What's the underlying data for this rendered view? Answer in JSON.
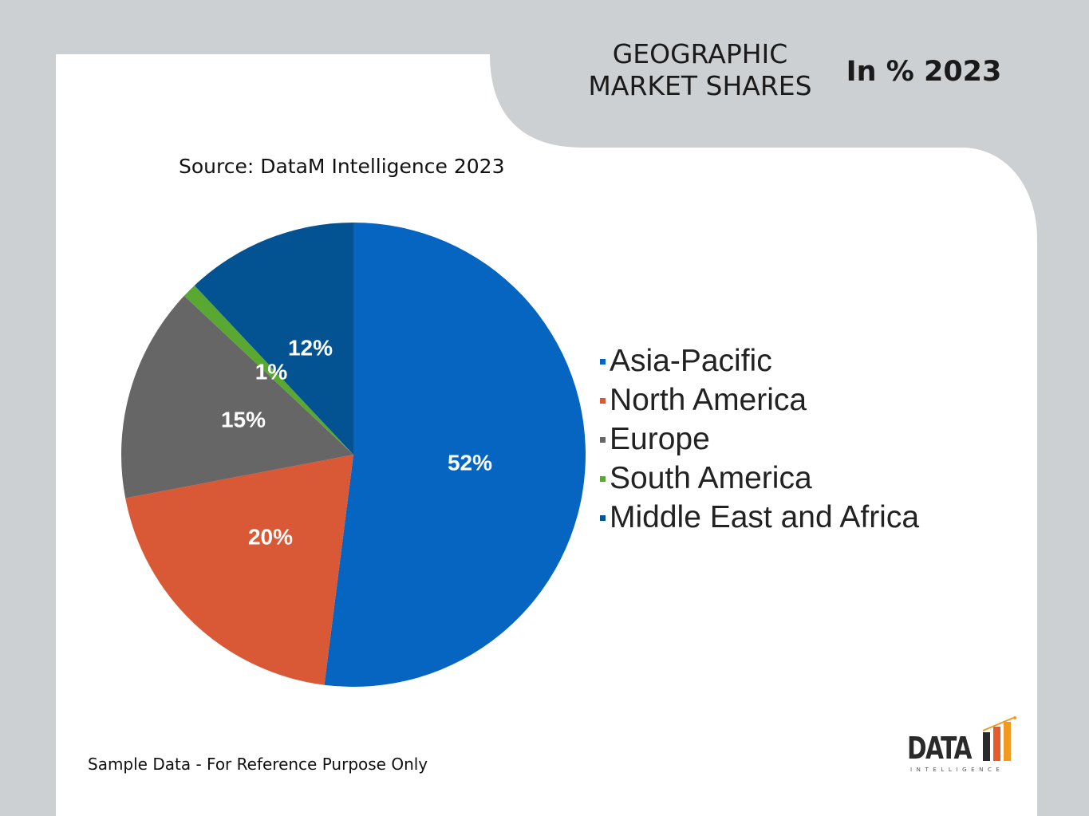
{
  "title": {
    "line1": "GEOGRAPHIC",
    "line2": "MARKET SHARES"
  },
  "unit_label": "In % 2023",
  "source": "Source: DataM Intelligence 2023",
  "footnote": "Sample Data - For Reference Purpose Only",
  "logo": {
    "word": "DATA",
    "subtitle": "INTELLIGENCE"
  },
  "colors": {
    "page_background": "#ccd0d3",
    "card_background": "#ffffff",
    "label_text": "#ffffff"
  },
  "chart_data": {
    "type": "pie",
    "title": "",
    "legend_position": "right",
    "slices": [
      {
        "name": "Asia-Pacific",
        "value": 52,
        "label": "52%",
        "color": "#0565c1"
      },
      {
        "name": "North America",
        "value": 20,
        "label": "20%",
        "color": "#d95835"
      },
      {
        "name": "Europe",
        "value": 15,
        "label": "15%",
        "color": "#666666"
      },
      {
        "name": "South America",
        "value": 1,
        "label": "1%",
        "color": "#58a832"
      },
      {
        "name": "Middle East and Africa",
        "value": 12,
        "label": "12%",
        "color": "#035292"
      }
    ]
  }
}
